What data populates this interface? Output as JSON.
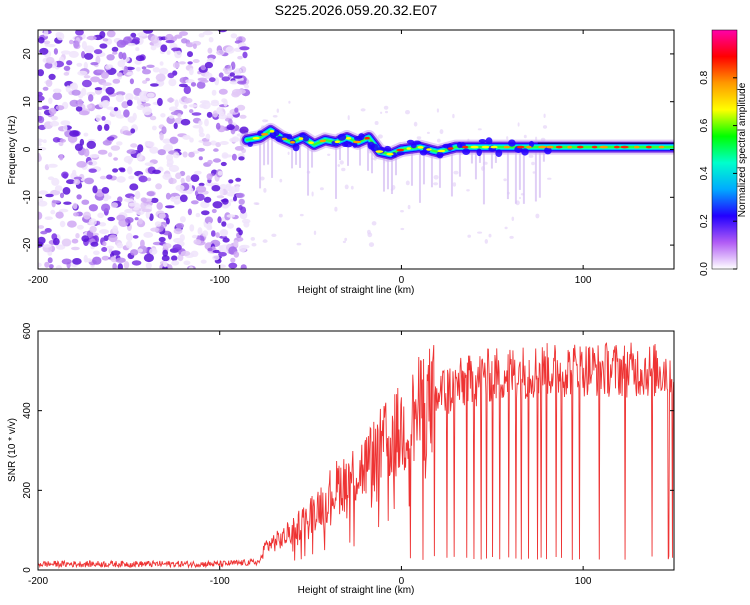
{
  "title": "S225.2026.059.20.32.E07",
  "chart_data": [
    {
      "type": "heatmap",
      "xlabel": "Height of straight line (km)",
      "ylabel": "Frequency (Hz)",
      "xlim": [
        -200,
        150
      ],
      "ylim": [
        -25,
        25
      ],
      "xticks": [
        -200,
        -100,
        0,
        100
      ],
      "xtick_labels": [
        "-200",
        "-100",
        "0",
        "100"
      ],
      "yticks": [
        -20,
        -10,
        0,
        10,
        20
      ],
      "ytick_labels": [
        "-20",
        "-10",
        "0",
        "10",
        "20"
      ],
      "noise_region_x": [
        -200,
        -85
      ],
      "signal_ridge": [
        {
          "x": -85,
          "y": 2.0
        },
        {
          "x": -78,
          "y": 2.5
        },
        {
          "x": -72,
          "y": 4.0
        },
        {
          "x": -66,
          "y": 2.5
        },
        {
          "x": -60,
          "y": 1.5
        },
        {
          "x": -54,
          "y": 2.5
        },
        {
          "x": -48,
          "y": 1.0
        },
        {
          "x": -42,
          "y": 2.0
        },
        {
          "x": -36,
          "y": 1.5
        },
        {
          "x": -30,
          "y": 2.5
        },
        {
          "x": -24,
          "y": 1.5
        },
        {
          "x": -18,
          "y": 2.5
        },
        {
          "x": -12,
          "y": -0.5
        },
        {
          "x": -6,
          "y": -1.0
        },
        {
          "x": 0,
          "y": 0.0
        },
        {
          "x": 10,
          "y": 0.5
        },
        {
          "x": 20,
          "y": -0.5
        },
        {
          "x": 30,
          "y": 0.5
        },
        {
          "x": 50,
          "y": 0.5
        },
        {
          "x": 75,
          "y": 0.5
        },
        {
          "x": 100,
          "y": 0.5
        },
        {
          "x": 150,
          "y": 0.5
        }
      ],
      "colorbar": {
        "label": "Normalized spectral amplitude",
        "range": [
          0,
          1
        ],
        "ticks": [
          0.0,
          0.2,
          0.4,
          0.6,
          0.8
        ],
        "tick_labels": [
          "0.0",
          "0.2",
          "0.4",
          "0.6",
          "0.8"
        ],
        "colors": [
          "#ffffff",
          "#b15cf5",
          "#2200ff",
          "#00aaff",
          "#00ffcc",
          "#00ff00",
          "#ffff00",
          "#ff9900",
          "#ff0000",
          "#ff00aa"
        ]
      }
    },
    {
      "type": "line",
      "xlabel": "Height of straight line (km)",
      "ylabel": "SNR (10 * v/v)",
      "xlim": [
        -200,
        150
      ],
      "ylim": [
        0,
        600
      ],
      "xticks": [
        -200,
        -100,
        0,
        100
      ],
      "xtick_labels": [
        "-200",
        "-100",
        "0",
        "100"
      ],
      "yticks": [
        0,
        200,
        400,
        600
      ],
      "ytick_labels": [
        "0",
        "200",
        "400",
        "600"
      ],
      "color": "#ee3333",
      "envelope": [
        {
          "x": -200,
          "y": 15
        },
        {
          "x": -100,
          "y": 15
        },
        {
          "x": -78,
          "y": 20
        },
        {
          "x": -75,
          "y": 60
        },
        {
          "x": -65,
          "y": 80
        },
        {
          "x": -50,
          "y": 140
        },
        {
          "x": -35,
          "y": 210
        },
        {
          "x": -20,
          "y": 260
        },
        {
          "x": -10,
          "y": 310
        },
        {
          "x": 0,
          "y": 350
        },
        {
          "x": 10,
          "y": 400
        },
        {
          "x": 20,
          "y": 440
        },
        {
          "x": 30,
          "y": 460
        },
        {
          "x": 50,
          "y": 490
        },
        {
          "x": 75,
          "y": 500
        },
        {
          "x": 100,
          "y": 505
        },
        {
          "x": 150,
          "y": 500
        }
      ],
      "dropouts_x": [
        5,
        12,
        18,
        25,
        29,
        36,
        40,
        44,
        47,
        50,
        54,
        59,
        63,
        66,
        70,
        75,
        77,
        80,
        85,
        88,
        94,
        98,
        109,
        123,
        138,
        147,
        149
      ],
      "dropout_level": 25
    }
  ]
}
